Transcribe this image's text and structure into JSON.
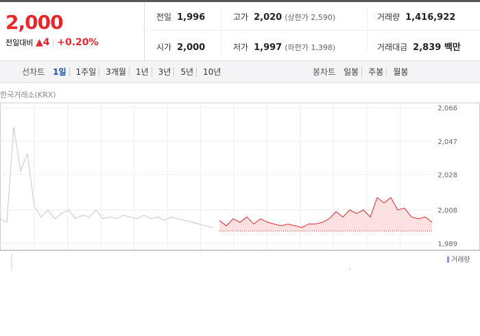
{
  "quote": {
    "price": "2,000",
    "change_label": "전일대비",
    "change": "4",
    "change_pct": "+0.20%"
  },
  "summary": [
    {
      "label": "전일",
      "value": "1,996"
    },
    {
      "label": "고가",
      "value": "2,020",
      "note": "(상한가 2,590)"
    },
    {
      "label": "거래량",
      "value": "1,416,922"
    },
    {
      "label": "시가",
      "value": "2,000"
    },
    {
      "label": "저가",
      "value": "1,997",
      "note": "(하한가 1,398)"
    },
    {
      "label": "거래대금",
      "value": "2,839 백만"
    }
  ],
  "tabs": {
    "line_label": "선차트",
    "line": [
      "1일",
      "1주일",
      "3개월",
      "1년",
      "3년",
      "5년",
      "10년"
    ],
    "candle_label": "봉차트",
    "candle": [
      "일봉",
      "주봉",
      "월봉"
    ]
  },
  "source": "한국거래소(KRX)",
  "chart_data": {
    "type": "line",
    "legend": "거래량",
    "baseline": 1996,
    "ylim": [
      1989,
      2066
    ],
    "yticks": [
      {
        "value": 2066,
        "label": "2,066"
      },
      {
        "value": 2047,
        "label": "2,047"
      },
      {
        "value": 2028,
        "label": "2,028"
      },
      {
        "value": 2008,
        "label": "2,008"
      },
      {
        "value": 1989,
        "label": "1,989"
      }
    ],
    "series": [
      {
        "color": "#c8c8cc",
        "values": [
          2003,
          2001,
          2055,
          2030,
          2040,
          2010,
          2004,
          2008,
          2003,
          2006,
          2008,
          2003,
          2005,
          2004,
          2008,
          2003,
          2004,
          2003,
          2005,
          2004,
          2003,
          2005,
          2003,
          2004,
          2002,
          2004,
          2003,
          2002,
          2001,
          2000,
          1999,
          1998,
          null,
          null,
          null,
          null,
          null,
          null,
          null,
          null,
          null,
          null,
          null,
          null,
          null,
          null,
          null,
          null,
          null,
          null,
          null,
          null,
          null,
          null,
          null,
          null,
          null,
          null,
          null,
          null,
          null,
          null,
          null,
          null
        ]
      },
      {
        "color": "#e8262b",
        "values": [
          null,
          null,
          null,
          null,
          null,
          null,
          null,
          null,
          null,
          null,
          null,
          null,
          null,
          null,
          null,
          null,
          null,
          null,
          null,
          null,
          null,
          null,
          null,
          null,
          null,
          null,
          null,
          null,
          null,
          null,
          null,
          null,
          2002,
          1999,
          2003,
          2001,
          2004,
          2000,
          2003,
          2001,
          2000,
          1999,
          2000,
          1999,
          1998,
          2000,
          2000,
          2001,
          2003,
          2007,
          2004,
          2008,
          2006,
          2008,
          2004,
          2015,
          2012,
          2015,
          2008,
          2009,
          2004,
          2003,
          2004,
          2001
        ]
      }
    ]
  }
}
